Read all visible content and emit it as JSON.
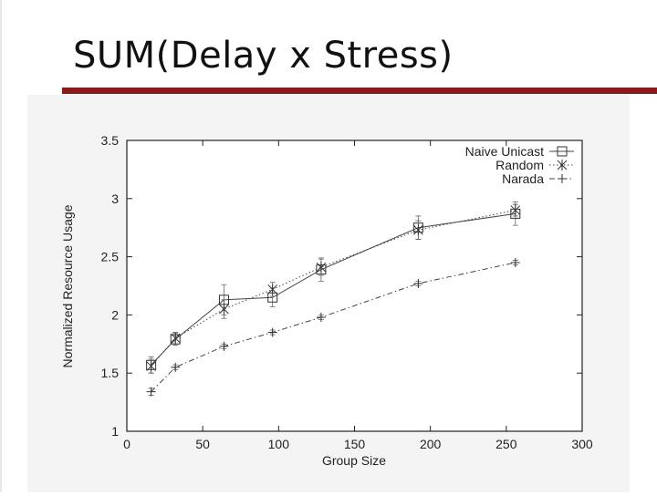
{
  "slide": {
    "title": "SUM(Delay x Stress)"
  },
  "chart_data": {
    "type": "line",
    "title": "",
    "xlabel": "Group Size",
    "ylabel": "Normalized Resource Usage",
    "xlim": [
      0,
      300
    ],
    "ylim": [
      1,
      3.5
    ],
    "xticks": [
      0,
      50,
      100,
      150,
      200,
      250,
      300
    ],
    "yticks": [
      1,
      1.5,
      2,
      2.5,
      3,
      3.5
    ],
    "ytick_labels": [
      "1",
      "1.5",
      "2",
      "2.5",
      "3",
      "3.5"
    ],
    "legend_position": "top-right",
    "series": [
      {
        "name": "Naive Unicast",
        "marker": "square",
        "dash": "solid",
        "x": [
          16,
          32,
          64,
          96,
          128,
          192,
          256
        ],
        "y": [
          1.57,
          1.79,
          2.13,
          2.15,
          2.39,
          2.75,
          2.87
        ],
        "err": [
          0.07,
          0.05,
          0.13,
          0.08,
          0.1,
          0.1,
          0.1
        ]
      },
      {
        "name": "Random",
        "marker": "star",
        "dash": "dotted",
        "x": [
          16,
          32,
          64,
          96,
          128,
          192,
          256
        ],
        "y": [
          1.56,
          1.8,
          2.05,
          2.22,
          2.41,
          2.73,
          2.9
        ],
        "err": [
          0.06,
          0.05,
          0.08,
          0.06,
          0.07,
          0.08,
          0.05
        ]
      },
      {
        "name": "Narada",
        "marker": "plus",
        "dash": "dashdot",
        "x": [
          16,
          32,
          64,
          96,
          128,
          192,
          256
        ],
        "y": [
          1.34,
          1.55,
          1.73,
          1.85,
          1.98,
          2.27,
          2.45
        ],
        "err": [
          0.03,
          0.02,
          0.02,
          0.02,
          0.02,
          0.02,
          0.02
        ]
      }
    ]
  }
}
